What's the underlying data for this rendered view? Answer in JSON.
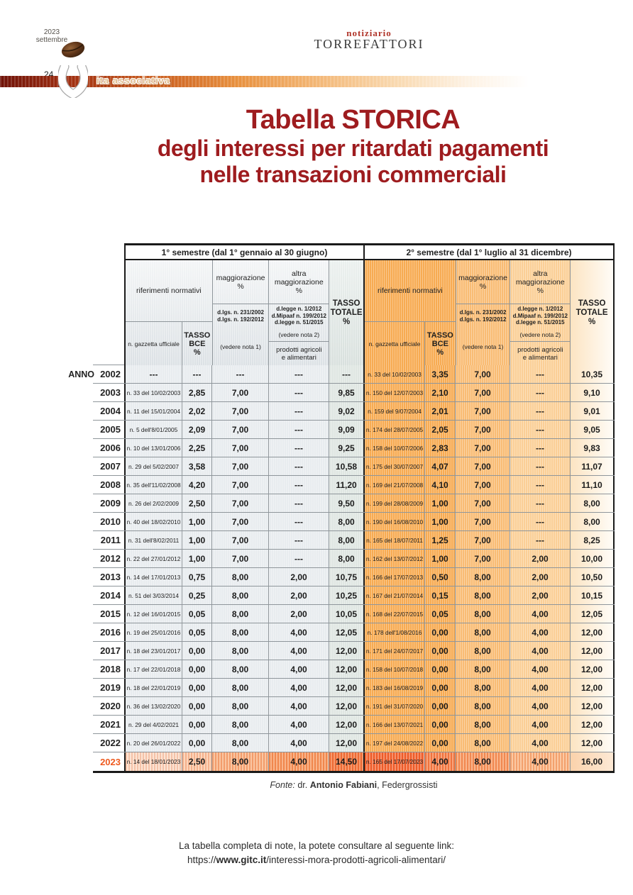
{
  "issue": {
    "year": "2023",
    "month": "settembre",
    "page_number": "24"
  },
  "masthead": {
    "line1": "notiziario",
    "line2": "TORREFATTORI"
  },
  "section_banner": {
    "label": "ita associativa"
  },
  "title": {
    "line1": "Tabella STORICA",
    "line2": "degli interessi per ritardati pagamenti",
    "line3": "nelle transazioni commerciali"
  },
  "table": {
    "anno_label": "ANNO",
    "semester1_title": "1° semestre (dal 1° gennaio al 30 giugno)",
    "semester2_title": "2° semestre (dal 1° luglio al 31 dicembre)",
    "header": {
      "riferimenti": "riferimenti normativi",
      "gazzetta": "n. gazzetta ufficiale",
      "tasso_bce": "TASSO\nBCE\n%",
      "maggiorazione_title": "maggiorazione\n%",
      "maggiorazione_laws": "d.lgs. n. 231/2002\nd.lgs. n. 192/2012",
      "nota1": "(vedere nota 1)",
      "altra_title": "altra\nmaggiorazione\n%",
      "altra_laws": "d.legge n. 1/2012\nd.Mipaaf n. 199/2012\nd.legge n. 51/2015",
      "nota2": "(vedere nota 2)",
      "prodotti": "prodotti agricoli\ne alimentari",
      "tasso_totale": "TASSO\nTOTALE\n%"
    },
    "rows": [
      {
        "year": "2002",
        "s1": [
          "---",
          "---",
          "---",
          "---",
          "---"
        ],
        "s2": [
          "n. 33 del 10/02/2003",
          "3,35",
          "7,00",
          "---",
          "10,35"
        ]
      },
      {
        "year": "2003",
        "s1": [
          "n. 33 del 10/02/2003",
          "2,85",
          "7,00",
          "---",
          "9,85"
        ],
        "s2": [
          "n. 150 del 12/07/2003",
          "2,10",
          "7,00",
          "---",
          "9,10"
        ]
      },
      {
        "year": "2004",
        "s1": [
          "n. 11 del 15/01/2004",
          "2,02",
          "7,00",
          "---",
          "9,02"
        ],
        "s2": [
          "n. 159 del 9/07/2004",
          "2,01",
          "7,00",
          "---",
          "9,01"
        ]
      },
      {
        "year": "2005",
        "s1": [
          "n. 5 dell'8/01/2005",
          "2,09",
          "7,00",
          "---",
          "9,09"
        ],
        "s2": [
          "n. 174 del 28/07/2005",
          "2,05",
          "7,00",
          "---",
          "9,05"
        ]
      },
      {
        "year": "2006",
        "s1": [
          "n. 10 del 13/01/2006",
          "2,25",
          "7,00",
          "---",
          "9,25"
        ],
        "s2": [
          "n. 158 del 10/07/2006",
          "2,83",
          "7,00",
          "---",
          "9,83"
        ]
      },
      {
        "year": "2007",
        "s1": [
          "n. 29 del 5/02/2007",
          "3,58",
          "7,00",
          "---",
          "10,58"
        ],
        "s2": [
          "n. 175 del 30/07/2007",
          "4,07",
          "7,00",
          "---",
          "11,07"
        ]
      },
      {
        "year": "2008",
        "s1": [
          "n. 35 dell'11/02/2008",
          "4,20",
          "7,00",
          "---",
          "11,20"
        ],
        "s2": [
          "n. 169 del 21/07/2008",
          "4,10",
          "7,00",
          "---",
          "11,10"
        ]
      },
      {
        "year": "2009",
        "s1": [
          "n. 26 del 2/02/2009",
          "2,50",
          "7,00",
          "---",
          "9,50"
        ],
        "s2": [
          "n. 199 del 28/08/2009",
          "1,00",
          "7,00",
          "---",
          "8,00"
        ]
      },
      {
        "year": "2010",
        "s1": [
          "n. 40 del 18/02/2010",
          "1,00",
          "7,00",
          "---",
          "8,00"
        ],
        "s2": [
          "n. 190 del 16/08/2010",
          "1,00",
          "7,00",
          "---",
          "8,00"
        ]
      },
      {
        "year": "2011",
        "s1": [
          "n. 31 dell'8/02/2011",
          "1,00",
          "7,00",
          "---",
          "8,00"
        ],
        "s2": [
          "n. 165 del 18/07/2011",
          "1,25",
          "7,00",
          "---",
          "8,25"
        ]
      },
      {
        "year": "2012",
        "s1": [
          "n. 22 del 27/01/2012",
          "1,00",
          "7,00",
          "---",
          "8,00"
        ],
        "s2": [
          "n. 162 del 13/07/2012",
          "1,00",
          "7,00",
          "2,00",
          "10,00"
        ]
      },
      {
        "year": "2013",
        "s1": [
          "n. 14 del 17/01/2013",
          "0,75",
          "8,00",
          "2,00",
          "10,75"
        ],
        "s2": [
          "n. 166 del 17/07/2013",
          "0,50",
          "8,00",
          "2,00",
          "10,50"
        ]
      },
      {
        "year": "2014",
        "s1": [
          "n. 51 del 3/03/2014",
          "0,25",
          "8,00",
          "2,00",
          "10,25"
        ],
        "s2": [
          "n. 167 del 21/07/2014",
          "0,15",
          "8,00",
          "2,00",
          "10,15"
        ]
      },
      {
        "year": "2015",
        "s1": [
          "n. 12 del 16/01/2015",
          "0,05",
          "8,00",
          "2,00",
          "10,05"
        ],
        "s2": [
          "n. 168 del 22/07/2015",
          "0,05",
          "8,00",
          "4,00",
          "12,05"
        ]
      },
      {
        "year": "2016",
        "s1": [
          "n. 19 del 25/01/2016",
          "0,05",
          "8,00",
          "4,00",
          "12,05"
        ],
        "s2": [
          "n. 178 dell'1/08/2016",
          "0,00",
          "8,00",
          "4,00",
          "12,00"
        ]
      },
      {
        "year": "2017",
        "s1": [
          "n. 18 del 23/01/2017",
          "0,00",
          "8,00",
          "4,00",
          "12,00"
        ],
        "s2": [
          "n. 171 del 24/07/2017",
          "0,00",
          "8,00",
          "4,00",
          "12,00"
        ]
      },
      {
        "year": "2018",
        "s1": [
          "n. 17 del 22/01/2018",
          "0,00",
          "8,00",
          "4,00",
          "12,00"
        ],
        "s2": [
          "n. 158 del 10/07/2018",
          "0,00",
          "8,00",
          "4,00",
          "12,00"
        ]
      },
      {
        "year": "2019",
        "s1": [
          "n. 18 del 22/01/2019",
          "0,00",
          "8,00",
          "4,00",
          "12,00"
        ],
        "s2": [
          "n. 183 del 16/08/2019",
          "0,00",
          "8,00",
          "4,00",
          "12,00"
        ]
      },
      {
        "year": "2020",
        "s1": [
          "n. 36 del 13/02/2020",
          "0,00",
          "8,00",
          "4,00",
          "12,00"
        ],
        "s2": [
          "n. 191 del 31/07/2020",
          "0,00",
          "8,00",
          "4,00",
          "12,00"
        ]
      },
      {
        "year": "2021",
        "s1": [
          "n. 29 del 4/02/2021",
          "0,00",
          "8,00",
          "4,00",
          "12,00"
        ],
        "s2": [
          "n. 166 del 13/07/2021",
          "0,00",
          "8,00",
          "4,00",
          "12,00"
        ]
      },
      {
        "year": "2022",
        "s1": [
          "n. 20 del 26/01/2022",
          "0,00",
          "8,00",
          "4,00",
          "12,00"
        ],
        "s2": [
          "n. 197 del 24/08/2022",
          "0,00",
          "8,00",
          "4,00",
          "12,00"
        ]
      },
      {
        "year": "2023",
        "highlight": true,
        "s1": [
          "n. 14 del 18/01/2023",
          "2,50",
          "8,00",
          "4,00",
          "14,50"
        ],
        "s2": [
          "n. 165 del 17/07/2023",
          "4,00",
          "8,00",
          "4,00",
          "16,00"
        ]
      }
    ]
  },
  "fonte": {
    "label": "Fonte:",
    "pre": " dr. ",
    "name": "Antonio Fabiani",
    "post": ", Federgrossisti"
  },
  "footnote": {
    "line1": "La tabella completa di note, la potete consultare al seguente link:",
    "url_pre": "https://",
    "url_bold": "www.gitc.it",
    "url_post": "/interessi-mora-prodotti-agricoli-alimentari/"
  },
  "colors": {
    "title_red": "#9e1c1f",
    "masthead_red": "#b0352a",
    "semester1_gray": "#e8ecef",
    "semester2_orange": "#f7ab52",
    "highlight_orange": "#f2612c",
    "highlight_year": "#ee5a1f"
  }
}
